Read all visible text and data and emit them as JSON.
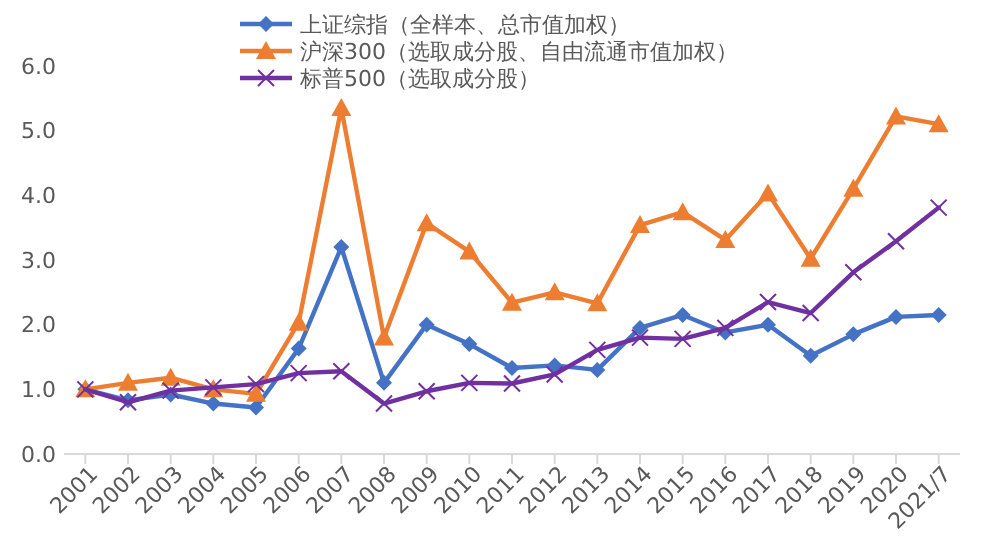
{
  "chart_data": {
    "type": "line",
    "categories": [
      "2001",
      "2002",
      "2003",
      "2004",
      "2005",
      "2006",
      "2007",
      "2008",
      "2009",
      "2010",
      "2011",
      "2012",
      "2013",
      "2014",
      "2015",
      "2016",
      "2017",
      "2018",
      "2019",
      "2020",
      "2021/7"
    ],
    "series": [
      {
        "name": "上证综指（全样本、总市值加权）",
        "color": "#4472c4",
        "marker": "diamond",
        "values": [
          1.0,
          0.83,
          0.92,
          0.78,
          0.72,
          1.63,
          3.2,
          1.1,
          2.0,
          1.7,
          1.33,
          1.37,
          1.3,
          1.95,
          2.15,
          1.88,
          2.0,
          1.52,
          1.85,
          2.12,
          2.15
        ]
      },
      {
        "name": "沪深300（选取成分股、自由流通市值加权）",
        "color": "#ed7d31",
        "marker": "triangle",
        "values": [
          1.0,
          1.1,
          1.18,
          1.0,
          0.93,
          2.03,
          5.35,
          1.8,
          3.57,
          3.13,
          2.34,
          2.5,
          2.33,
          3.54,
          3.74,
          3.31,
          4.03,
          3.02,
          4.1,
          5.22,
          5.1
        ]
      },
      {
        "name": "标普500（选取成分股）",
        "color": "#7030a0",
        "marker": "cross",
        "values": [
          1.0,
          0.8,
          0.98,
          1.03,
          1.08,
          1.25,
          1.28,
          0.78,
          0.97,
          1.1,
          1.09,
          1.23,
          1.61,
          1.8,
          1.78,
          1.95,
          2.35,
          2.18,
          2.81,
          3.29,
          3.81
        ]
      }
    ],
    "ylim": [
      0,
      6
    ],
    "yticks": [
      {
        "value": 0,
        "label": "0.0"
      },
      {
        "value": 1,
        "label": "1.0"
      },
      {
        "value": 2,
        "label": "2.0"
      },
      {
        "value": 3,
        "label": "3.0"
      },
      {
        "value": 4,
        "label": "4.0"
      },
      {
        "value": 5,
        "label": "5.0"
      },
      {
        "value": 6,
        "label": "6.0"
      }
    ],
    "grid": false,
    "legend": "top",
    "line_style": "solid"
  }
}
